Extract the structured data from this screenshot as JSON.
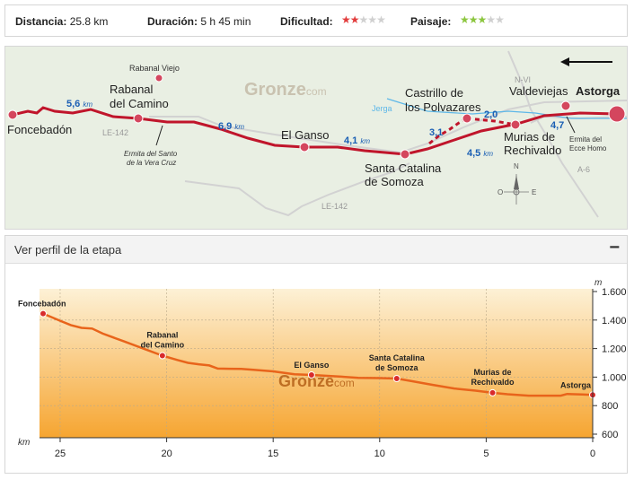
{
  "stats": {
    "distance_label": "Distancia:",
    "distance_value": "25.8 km",
    "duration_label": "Duración:",
    "duration_value": "5 h 45 min",
    "difficulty_label": "Dificultad:",
    "difficulty_stars": 2,
    "landscape_label": "Paisaje:",
    "landscape_stars": 3,
    "stars_total": 5
  },
  "colors": {
    "route": "#c0152b",
    "river": "#5db7e8",
    "road": "#d2d2d2",
    "map_bg": "#e9efe3",
    "star_red": "#e23c3c",
    "star_green": "#8cc63f",
    "star_off": "#d0d0d0",
    "profile_line": "#e8641b",
    "distance_blue": "#1a5fb4"
  },
  "map": {
    "watermark_main": "Gronze",
    "watermark_sub": "com",
    "places": {
      "foncebadon": "Foncebadón",
      "rabanal_viejo": "Rabanal Viejo",
      "rabanal_1": "Rabanal",
      "rabanal_2": "del Camino",
      "el_ganso": "El Ganso",
      "santa_catalina_1": "Santa Catalina",
      "santa_catalina_2": "de Somoza",
      "castrillo_1": "Castrillo de",
      "castrillo_2": "los Polvazares",
      "valdeviejas": "Valdeviejas",
      "astorga": "Astorga",
      "murias_1": "Murias de",
      "murias_2": "Rechivaldo",
      "ermita_santo_1": "Ermita del Santo",
      "ermita_santo_2": "de la Vera Cruz",
      "ermita_ecce_1": "Ermita del",
      "ermita_ecce_2": "Ecce Homo"
    },
    "roads": {
      "le142_a": "LE-142",
      "le142_b": "LE-142",
      "nvi": "N-VI",
      "a6": "A-6"
    },
    "river": "Jerga",
    "compass": {
      "n": "N",
      "e": "E",
      "o": "O"
    },
    "distances": [
      {
        "value": "5,6",
        "unit": "km"
      },
      {
        "value": "6,9",
        "unit": "km"
      },
      {
        "value": "4,1",
        "unit": "km"
      },
      {
        "value": "4,5",
        "unit": "km"
      },
      {
        "value": "3,1",
        "unit": ""
      },
      {
        "value": "2,0",
        "unit": ""
      },
      {
        "value": "4,7",
        "unit": ""
      }
    ]
  },
  "profile": {
    "header": "Ver perfil de la etapa",
    "collapse": "−",
    "watermark_main": "Gronze",
    "watermark_sub": "com",
    "y_unit": "m",
    "x_unit": "km",
    "y_ticks": [
      "1.600",
      "1.400",
      "1.200",
      "1.000",
      "800",
      "600"
    ],
    "y_values": [
      1600,
      1400,
      1200,
      1000,
      800,
      600
    ],
    "x_ticks": [
      "25",
      "20",
      "15",
      "10",
      "5",
      "0"
    ],
    "x_values": [
      25,
      20,
      15,
      10,
      5,
      0
    ],
    "x_range": [
      25.8,
      0
    ],
    "y_range": [
      600,
      1600
    ],
    "elevation": [
      [
        25.8,
        1445
      ],
      [
        25.4,
        1420
      ],
      [
        25.0,
        1395
      ],
      [
        24.5,
        1365
      ],
      [
        24.0,
        1345
      ],
      [
        23.5,
        1340
      ],
      [
        23.0,
        1305
      ],
      [
        22.0,
        1250
      ],
      [
        21.0,
        1195
      ],
      [
        20.2,
        1150
      ],
      [
        19.5,
        1120
      ],
      [
        19.0,
        1100
      ],
      [
        18.5,
        1090
      ],
      [
        18.0,
        1082
      ],
      [
        17.6,
        1060
      ],
      [
        16.5,
        1057
      ],
      [
        16.0,
        1052
      ],
      [
        15.0,
        1040
      ],
      [
        14.0,
        1020
      ],
      [
        13.2,
        1015
      ],
      [
        12.0,
        1005
      ],
      [
        11.0,
        995
      ],
      [
        10.0,
        993
      ],
      [
        9.2,
        990
      ],
      [
        8.5,
        972
      ],
      [
        7.5,
        945
      ],
      [
        6.5,
        920
      ],
      [
        5.5,
        905
      ],
      [
        4.7,
        890
      ],
      [
        4.0,
        880
      ],
      [
        3.0,
        870
      ],
      [
        2.0,
        870
      ],
      [
        1.5,
        870
      ],
      [
        1.2,
        882
      ],
      [
        0.5,
        878
      ],
      [
        0.0,
        875
      ]
    ],
    "stops": [
      {
        "line1": "Foncebadón",
        "line2": "",
        "km": 25.8,
        "ele": 1445
      },
      {
        "line1": "Rabanal",
        "line2": "del Camino",
        "km": 20.2,
        "ele": 1150
      },
      {
        "line1": "El Ganso",
        "line2": "",
        "km": 13.2,
        "ele": 1015
      },
      {
        "line1": "Santa Catalina",
        "line2": "de Somoza",
        "km": 9.2,
        "ele": 990
      },
      {
        "line1": "Murias de",
        "line2": "Rechivaldo",
        "km": 4.7,
        "ele": 890
      },
      {
        "line1": "Astorga",
        "line2": "",
        "km": 0.0,
        "ele": 875
      }
    ]
  }
}
